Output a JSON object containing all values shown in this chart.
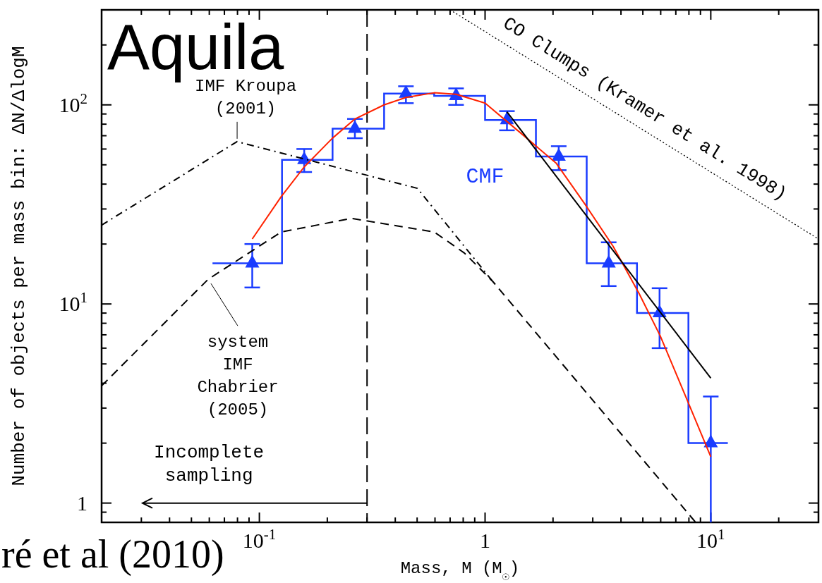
{
  "chart_data": {
    "type": "line",
    "xlabel": "Mass, M (M$_{☉}$)",
    "ylabel": "Number of objects per mass bin: ΔN/ΔlogM",
    "log": "xy",
    "xlim": [
      0.02,
      30
    ],
    "ylim": [
      0.8,
      300
    ],
    "xticks": [
      {
        "value": 0.02,
        "label": null
      },
      {
        "value": 0.03,
        "label": null
      },
      {
        "value": 0.04,
        "label": null
      },
      {
        "value": 0.05,
        "label": null
      },
      {
        "value": 0.06,
        "label": null
      },
      {
        "value": 0.07,
        "label": null
      },
      {
        "value": 0.08,
        "label": null
      },
      {
        "value": 0.09,
        "label": null
      },
      {
        "value": 0.1,
        "label": "10$^{-1}$"
      },
      {
        "value": 0.2,
        "label": null
      },
      {
        "value": 0.3,
        "label": null
      },
      {
        "value": 0.4,
        "label": null
      },
      {
        "value": 0.5,
        "label": null
      },
      {
        "value": 0.6,
        "label": null
      },
      {
        "value": 0.7,
        "label": null
      },
      {
        "value": 0.8,
        "label": null
      },
      {
        "value": 0.9,
        "label": null
      },
      1,
      {
        "value": 2,
        "label": null
      },
      {
        "value": 3,
        "label": null
      },
      {
        "value": 4,
        "label": null
      },
      {
        "value": 5,
        "label": null
      },
      {
        "value": 6,
        "label": null
      },
      {
        "value": 7,
        "label": null
      },
      {
        "value": 8,
        "label": null
      },
      {
        "value": 9,
        "label": null
      },
      {
        "value": 10,
        "label": "10$^{1}$"
      },
      {
        "value": 20,
        "label": null
      },
      {
        "value": 30,
        "label": null
      }
    ],
    "yticks": [
      {
        "value": 0.9,
        "label": null
      },
      1,
      {
        "value": 2,
        "label": null
      },
      {
        "value": 3,
        "label": null
      },
      {
        "value": 4,
        "label": null
      },
      {
        "value": 5,
        "label": null
      },
      {
        "value": 6,
        "label": null
      },
      {
        "value": 7,
        "label": null
      },
      {
        "value": 8,
        "label": null
      },
      {
        "value": 9,
        "label": null
      },
      {
        "value": 10,
        "label": "10$^{1}$"
      },
      {
        "value": 20,
        "label": null
      },
      {
        "value": 30,
        "label": null
      },
      {
        "value": 40,
        "label": null
      },
      {
        "value": 50,
        "label": null
      },
      {
        "value": 60,
        "label": null
      },
      {
        "value": 70,
        "label": null
      },
      {
        "value": 80,
        "label": null
      },
      {
        "value": 90,
        "label": null
      },
      {
        "value": 100,
        "label": "10$^{2}$"
      },
      {
        "value": 200,
        "label": null
      },
      {
        "value": 300,
        "label": null
      }
    ],
    "ref_lines": [
      {
        "axis": "x",
        "value": 0.3,
        "line_style": "dashed",
        "color": "#000000"
      }
    ],
    "annotations": [
      "Aquila",
      {
        "text": "IMF Kroupa (2001)",
        "x": 0.0797,
        "y": 65.4
      },
      {
        "text": "system IMF Chabrier (2005)",
        "x": 0.0593,
        "y": 13.3
      },
      {
        "text": "CO Clumps (Kramer et al. 1998)",
        "x": 4.6,
        "y": 79
      },
      {
        "text": "Incomplete sampling",
        "x": 0.3,
        "y": 1
      },
      "ré et al (2010)"
    ],
    "series": [
      {
        "type": "histogram",
        "name": "CMF",
        "color": "#1a3cff",
        "bins": [
          0.062,
          0.126,
          0.211,
          0.357,
          0.595,
          1.0,
          1.68,
          2.82,
          4.71,
          7.96,
          11.9
        ],
        "values": [
          16,
          53,
          76,
          114,
          111,
          84,
          55,
          16,
          9,
          2
        ]
      },
      {
        "type": "scatter",
        "color": "#1a3cff",
        "marker": "triangle",
        "x": [
          0.093,
          0.158,
          0.265,
          0.446,
          0.744,
          1.25,
          2.12,
          3.53,
          5.93,
          10
        ],
        "values": [
          16,
          53,
          76,
          114,
          111,
          84,
          55,
          16,
          9,
          2
        ],
        "errors": [
          [
            12.1,
            20.0
          ],
          [
            46,
            60
          ],
          [
            68,
            85
          ],
          [
            102,
            124
          ],
          [
            100,
            121
          ],
          [
            74.5,
            93
          ],
          [
            47,
            62
          ],
          [
            12.3,
            20.4
          ],
          [
            6.0,
            12.0
          ],
          [
            0.8,
            3.43
          ]
        ]
      },
      {
        "color": "#ff2200",
        "x": [
          0.093,
          0.125,
          0.158,
          0.211,
          0.265,
          0.357,
          0.446,
          0.595,
          0.744,
          1.0,
          1.44,
          2.07,
          2.76,
          3.69,
          4.81,
          5.97,
          7.74,
          10
        ],
        "values": [
          21.2,
          34.6,
          48.8,
          68.1,
          84.9,
          100,
          109,
          115,
          113,
          102,
          72.1,
          50.8,
          31.9,
          19.5,
          11.3,
          6.92,
          3.43,
          1.71
        ]
      },
      {
        "color": "#000000",
        "x": [
          1.25,
          10
        ],
        "values": [
          92.2,
          4.24
        ]
      },
      {
        "color": "#000000",
        "line_style": "dashdot",
        "x": [
          0.02,
          0.0797,
          0.501,
          1.08
        ],
        "values": [
          24.9,
          65.4,
          38.1,
          13.0
        ]
      },
      {
        "color": "#000000",
        "line_style": "dashed",
        "x": [
          0.02,
          0.0593,
          0.125,
          0.256,
          0.595,
          0.811,
          1.08,
          8.57
        ],
        "values": [
          3.88,
          13.3,
          23.0,
          26.9,
          23.0,
          18.0,
          13.0,
          0.8
        ]
      },
      {
        "color": "#000000",
        "line_style": "dotted",
        "x": [
          0.7,
          30
        ],
        "values": [
          300,
          21.2
        ]
      }
    ]
  }
}
